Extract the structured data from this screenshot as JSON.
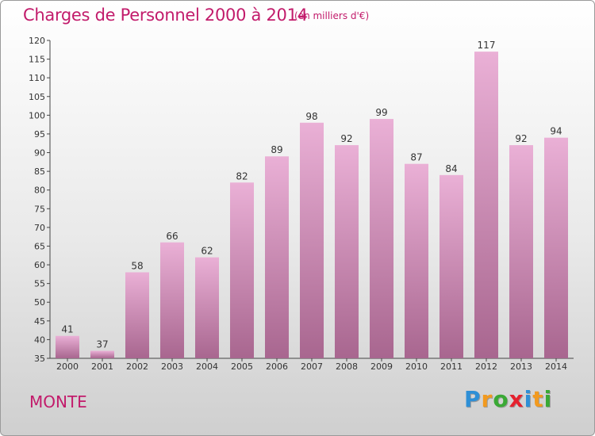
{
  "header": {
    "title": "Charges de Personnel 2000 à 2014",
    "unit": "(en milliers d'€)"
  },
  "footer": {
    "commune": "MONTE",
    "logo_letters": [
      "P",
      "r",
      "o",
      "x",
      "i",
      "t",
      "i"
    ],
    "logo_colors": [
      "#2e8fd6",
      "#f29a1f",
      "#3aa935",
      "#e5212e",
      "#2e8fd6",
      "#f29a1f",
      "#3aa935"
    ]
  },
  "colors": {
    "accent": "#c21b6b",
    "bar_top": "#eab0d6",
    "bar_bottom": "#a8668f"
  },
  "chart_data": {
    "type": "bar",
    "title": "Charges de Personnel 2000 à 2014",
    "subtitle": "(en milliers d'€)",
    "categories": [
      "2000",
      "2001",
      "2002",
      "2003",
      "2004",
      "2005",
      "2006",
      "2007",
      "2008",
      "2009",
      "2010",
      "2011",
      "2012",
      "2013",
      "2014"
    ],
    "values": [
      41,
      37,
      58,
      66,
      62,
      82,
      89,
      98,
      92,
      99,
      87,
      84,
      117,
      92,
      94
    ],
    "xlabel": "",
    "ylabel": "",
    "ylim": [
      35,
      120
    ],
    "yticks": [
      35,
      40,
      45,
      50,
      55,
      60,
      65,
      70,
      75,
      80,
      85,
      90,
      95,
      100,
      105,
      110,
      115,
      120
    ],
    "grid": false,
    "legend": "none"
  }
}
